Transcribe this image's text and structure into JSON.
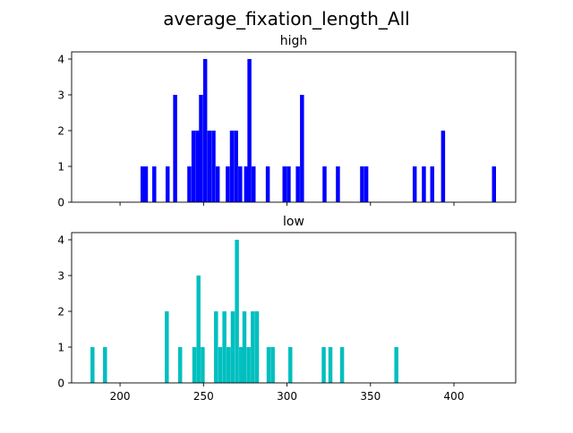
{
  "figure": {
    "suptitle": "average_fixation_length_All"
  },
  "chart_data": [
    {
      "type": "bar",
      "title": "high",
      "color": "#0000ff",
      "xlim": [
        171,
        437
      ],
      "ylim": [
        0,
        4.2
      ],
      "xticks": [
        200,
        250,
        300,
        350,
        400
      ],
      "show_xtick_labels": false,
      "yticks": [
        0,
        1,
        2,
        3,
        4
      ],
      "bin_width": 2.4,
      "bars": [
        {
          "x": 213.5,
          "y": 1
        },
        {
          "x": 215.5,
          "y": 1
        },
        {
          "x": 220.5,
          "y": 1
        },
        {
          "x": 228.5,
          "y": 1
        },
        {
          "x": 233.0,
          "y": 3
        },
        {
          "x": 241.5,
          "y": 1
        },
        {
          "x": 244.0,
          "y": 2
        },
        {
          "x": 246.5,
          "y": 2
        },
        {
          "x": 248.5,
          "y": 3
        },
        {
          "x": 251.0,
          "y": 4
        },
        {
          "x": 253.5,
          "y": 2
        },
        {
          "x": 256.0,
          "y": 2
        },
        {
          "x": 258.5,
          "y": 1
        },
        {
          "x": 264.5,
          "y": 1
        },
        {
          "x": 267.0,
          "y": 2
        },
        {
          "x": 269.5,
          "y": 2
        },
        {
          "x": 272.0,
          "y": 1
        },
        {
          "x": 275.5,
          "y": 1
        },
        {
          "x": 277.5,
          "y": 4
        },
        {
          "x": 280.0,
          "y": 1
        },
        {
          "x": 288.5,
          "y": 1
        },
        {
          "x": 298.5,
          "y": 1
        },
        {
          "x": 301.0,
          "y": 1
        },
        {
          "x": 306.5,
          "y": 1
        },
        {
          "x": 309.0,
          "y": 3
        },
        {
          "x": 322.5,
          "y": 1
        },
        {
          "x": 330.5,
          "y": 1
        },
        {
          "x": 345.0,
          "y": 1
        },
        {
          "x": 347.5,
          "y": 1
        },
        {
          "x": 376.5,
          "y": 1
        },
        {
          "x": 382.0,
          "y": 1
        },
        {
          "x": 387.0,
          "y": 1
        },
        {
          "x": 393.5,
          "y": 2
        },
        {
          "x": 424.0,
          "y": 1
        }
      ]
    },
    {
      "type": "bar",
      "title": "low",
      "color": "#00bfbf",
      "xlim": [
        171,
        437
      ],
      "ylim": [
        0,
        4.2
      ],
      "xticks": [
        200,
        250,
        300,
        350,
        400
      ],
      "show_xtick_labels": true,
      "xtick_labels": [
        "200",
        "250",
        "300",
        "350",
        "400"
      ],
      "yticks": [
        0,
        1,
        2,
        3,
        4
      ],
      "bin_width": 2.4,
      "bars": [
        {
          "x": 183.5,
          "y": 1
        },
        {
          "x": 191.0,
          "y": 1
        },
        {
          "x": 228.0,
          "y": 2
        },
        {
          "x": 236.0,
          "y": 1
        },
        {
          "x": 244.5,
          "y": 1
        },
        {
          "x": 247.0,
          "y": 3
        },
        {
          "x": 249.5,
          "y": 1
        },
        {
          "x": 257.5,
          "y": 2
        },
        {
          "x": 260.0,
          "y": 1
        },
        {
          "x": 262.5,
          "y": 2
        },
        {
          "x": 265.0,
          "y": 1
        },
        {
          "x": 267.5,
          "y": 2
        },
        {
          "x": 270.0,
          "y": 4
        },
        {
          "x": 272.5,
          "y": 1
        },
        {
          "x": 274.5,
          "y": 2
        },
        {
          "x": 277.0,
          "y": 1
        },
        {
          "x": 279.5,
          "y": 2
        },
        {
          "x": 282.0,
          "y": 2
        },
        {
          "x": 289.0,
          "y": 1
        },
        {
          "x": 291.5,
          "y": 1
        },
        {
          "x": 302.0,
          "y": 1
        },
        {
          "x": 322.0,
          "y": 1
        },
        {
          "x": 326.0,
          "y": 1
        },
        {
          "x": 333.0,
          "y": 1
        },
        {
          "x": 365.5,
          "y": 1
        }
      ]
    }
  ]
}
